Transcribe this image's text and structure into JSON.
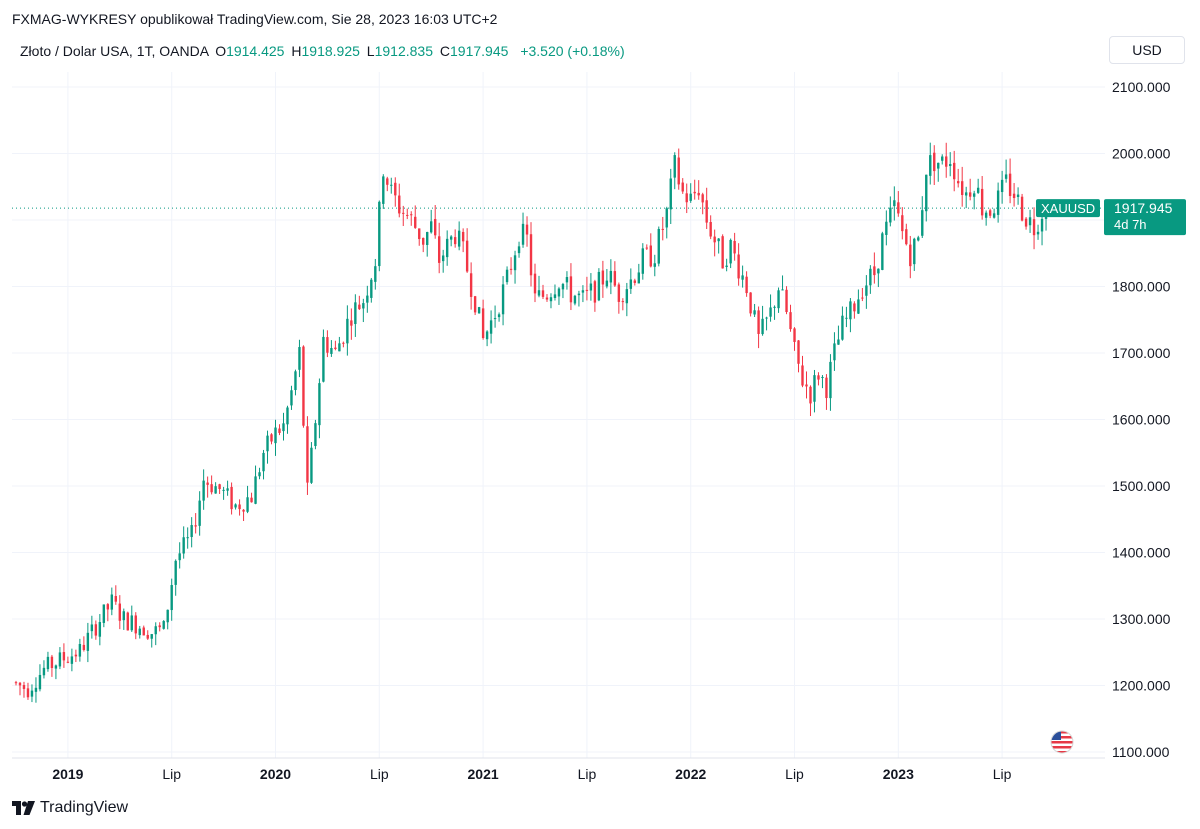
{
  "attribution": "FXMAG-WYKRESY opublikował TradingView.com, Sie 28, 2023 16:03 UTC+2",
  "legend": {
    "symbol_desc": "Złoto / Dolar USA, 1T, OANDA",
    "open_label": "O",
    "open": "1914.425",
    "high_label": "H",
    "high": "1918.925",
    "low_label": "L",
    "low": "1912.835",
    "close_label": "C",
    "close": "1917.945",
    "change": "+3.520 (+0.18%)"
  },
  "currency_button": "USD",
  "price_tag": {
    "symbol": "XAUUSD",
    "price": "1917.945",
    "countdown": "4d 7h"
  },
  "footer": {
    "brand": "TradingView"
  },
  "colors": {
    "up": "#089981",
    "down": "#f23645",
    "grid": "#f0f3fa",
    "tag_bg": "#089981"
  },
  "chart_data": {
    "type": "candlestick",
    "title": "Złoto / Dolar USA, 1T, OANDA",
    "interval": "1W",
    "ylim": [
      1090,
      2130
    ],
    "y_ticks": [
      1100,
      1200,
      1300,
      1400,
      1500,
      1600,
      1700,
      1800,
      1900,
      2000,
      2100
    ],
    "y_tick_labels": [
      "1100.000",
      "1200.000",
      "1300.000",
      "1400.000",
      "1500.000",
      "1600.000",
      "1700.000",
      "1800.000",
      "1900.000",
      "2000.000",
      "2100.000"
    ],
    "x_ticks": [
      {
        "label": "2019",
        "year": true
      },
      {
        "label": "Lip",
        "year": false
      },
      {
        "label": "2020",
        "year": true
      },
      {
        "label": "Lip",
        "year": false
      },
      {
        "label": "2021",
        "year": true
      },
      {
        "label": "Lip",
        "year": false
      },
      {
        "label": "2022",
        "year": true
      },
      {
        "label": "Lip",
        "year": false
      },
      {
        "label": "2023",
        "year": true
      },
      {
        "label": "Lip",
        "year": false
      }
    ],
    "x_tick_weeks": [
      13,
      39,
      65,
      91,
      117,
      143,
      169,
      195,
      221,
      247
    ],
    "total_weeks": 263,
    "last_price": 1917.945,
    "anchors": [
      [
        0,
        1205
      ],
      [
        4,
        1195
      ],
      [
        8,
        1225
      ],
      [
        12,
        1238
      ],
      [
        17,
        1252
      ],
      [
        21,
        1290
      ],
      [
        25,
        1325
      ],
      [
        28,
        1300
      ],
      [
        32,
        1290
      ],
      [
        35,
        1280
      ],
      [
        38,
        1285
      ],
      [
        41,
        1390
      ],
      [
        45,
        1425
      ],
      [
        48,
        1510
      ],
      [
        52,
        1495
      ],
      [
        56,
        1470
      ],
      [
        60,
        1485
      ],
      [
        63,
        1550
      ],
      [
        66,
        1580
      ],
      [
        68,
        1590
      ],
      [
        70,
        1640
      ],
      [
        72,
        1700
      ],
      [
        74,
        1490
      ],
      [
        76,
        1600
      ],
      [
        78,
        1720
      ],
      [
        81,
        1700
      ],
      [
        85,
        1760
      ],
      [
        88,
        1780
      ],
      [
        91,
        1840
      ],
      [
        93,
        1980
      ],
      [
        95,
        1940
      ],
      [
        97,
        1920
      ],
      [
        100,
        1900
      ],
      [
        103,
        1870
      ],
      [
        105,
        1890
      ],
      [
        107,
        1840
      ],
      [
        109,
        1860
      ],
      [
        111,
        1880
      ],
      [
        113,
        1850
      ],
      [
        116,
        1780
      ],
      [
        118,
        1720
      ],
      [
        121,
        1760
      ],
      [
        124,
        1810
      ],
      [
        127,
        1880
      ],
      [
        129,
        1870
      ],
      [
        131,
        1780
      ],
      [
        134,
        1790
      ],
      [
        137,
        1810
      ],
      [
        140,
        1790
      ],
      [
        143,
        1780
      ],
      [
        146,
        1795
      ],
      [
        149,
        1820
      ],
      [
        152,
        1790
      ],
      [
        155,
        1810
      ],
      [
        158,
        1840
      ],
      [
        161,
        1850
      ],
      [
        164,
        1910
      ],
      [
        166,
        1980
      ],
      [
        168,
        1940
      ],
      [
        170,
        1930
      ],
      [
        172,
        1950
      ],
      [
        174,
        1900
      ],
      [
        176,
        1870
      ],
      [
        178,
        1840
      ],
      [
        180,
        1860
      ],
      [
        182,
        1830
      ],
      [
        184,
        1800
      ],
      [
        187,
        1720
      ],
      [
        190,
        1760
      ],
      [
        192,
        1800
      ],
      [
        194,
        1760
      ],
      [
        196,
        1700
      ],
      [
        198,
        1660
      ],
      [
        200,
        1640
      ],
      [
        202,
        1670
      ],
      [
        204,
        1650
      ],
      [
        206,
        1700
      ],
      [
        208,
        1740
      ],
      [
        210,
        1760
      ],
      [
        213,
        1800
      ],
      [
        216,
        1820
      ],
      [
        218,
        1870
      ],
      [
        221,
        1920
      ],
      [
        223,
        1880
      ],
      [
        225,
        1850
      ],
      [
        227,
        1870
      ],
      [
        229,
        1980
      ],
      [
        231,
        1990
      ],
      [
        233,
        1985
      ],
      [
        235,
        1995
      ],
      [
        237,
        1960
      ],
      [
        239,
        1940
      ],
      [
        241,
        1960
      ],
      [
        243,
        1920
      ],
      [
        245,
        1915
      ],
      [
        247,
        1930
      ],
      [
        249,
        1955
      ],
      [
        251,
        1940
      ],
      [
        253,
        1915
      ],
      [
        254,
        1905
      ],
      [
        256,
        1890
      ],
      [
        258,
        1914
      ]
    ]
  },
  "flag_icon": "us-flag-icon"
}
